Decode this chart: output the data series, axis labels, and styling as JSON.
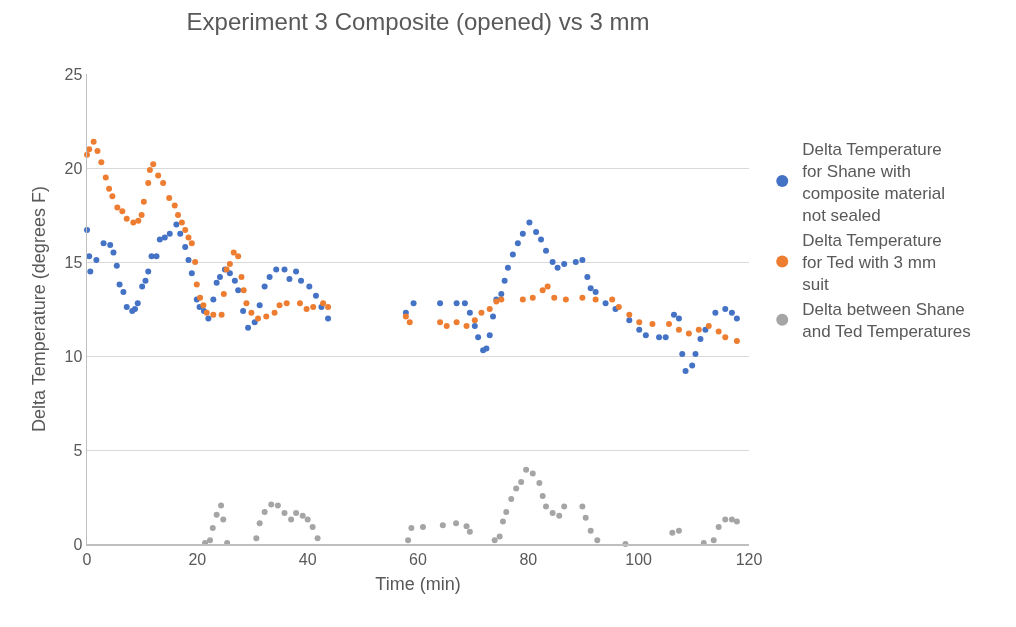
{
  "chart_data": {
    "type": "scatter",
    "title": "Experiment 3 Composite (opened) vs 3 mm",
    "xlabel": "Time (min)",
    "ylabel": "Delta Temperature (degrees F)",
    "xlim": [
      0,
      120
    ],
    "xticks": [
      0,
      20,
      40,
      60,
      80,
      100,
      120
    ],
    "ylim": [
      0,
      25
    ],
    "yticks": [
      0,
      5,
      10,
      15,
      20,
      25
    ],
    "grid": "y",
    "legend": "right",
    "marker": "circle",
    "series": [
      {
        "name": "Delta Temperature for Shane with composite material not sealed",
        "color": "#4472c4",
        "x": [
          0,
          0.4,
          0.6,
          1.7,
          3,
          4.2,
          4.8,
          5.4,
          5.9,
          6.6,
          7.2,
          8.2,
          8.7,
          9.2,
          10,
          10.6,
          11.1,
          11.7,
          12.6,
          13.2,
          14.1,
          15,
          16.2,
          16.9,
          17.8,
          18.4,
          19,
          19.9,
          20.4,
          21.2,
          22,
          22.9,
          23.5,
          24.1,
          25,
          25.9,
          26.8,
          27.4,
          28.3,
          29.2,
          30.4,
          31.3,
          32.2,
          33.1,
          34.3,
          35.8,
          36.7,
          37.9,
          38.8,
          40.3,
          41.5,
          42.5,
          43.7,
          57.8,
          59.2,
          64,
          67,
          68.5,
          69.4,
          70.3,
          70.9,
          71.8,
          72.4,
          73,
          73.6,
          74.2,
          75.1,
          75.7,
          76.3,
          77.2,
          78.1,
          79,
          80.2,
          81.4,
          82.3,
          83.2,
          84.4,
          85.3,
          86.5,
          88.6,
          89.8,
          90.7,
          91.3,
          92.2,
          94,
          95.8,
          98.3,
          100.1,
          101.3,
          103.7,
          104.9,
          106.4,
          107.3,
          107.9,
          108.5,
          109.7,
          110.3,
          111.2,
          112.1,
          113.9,
          115.7,
          116.9,
          117.8
        ],
        "values": [
          16.7,
          15.3,
          14.5,
          15.1,
          16,
          15.9,
          15.5,
          14.8,
          13.8,
          13.4,
          12.6,
          12.4,
          12.5,
          12.8,
          13.7,
          14,
          14.5,
          15.3,
          15.3,
          16.2,
          16.3,
          16.5,
          17,
          16.5,
          15.8,
          15.1,
          14.4,
          13,
          12.6,
          12.4,
          12,
          13,
          13.9,
          14.2,
          14.6,
          14.4,
          14,
          13.5,
          12.4,
          11.5,
          11.8,
          12.7,
          13.7,
          14.2,
          14.6,
          14.6,
          14.1,
          14.5,
          14,
          13.7,
          13.2,
          12.6,
          12,
          12.3,
          12.8,
          12.8,
          12.8,
          12.8,
          12.3,
          11.6,
          11,
          10.3,
          10.4,
          11.1,
          12.1,
          13,
          13.3,
          14,
          14.7,
          15.4,
          16,
          16.5,
          17.1,
          16.6,
          16.2,
          15.6,
          15,
          14.7,
          14.9,
          15,
          15.1,
          14.2,
          13.6,
          13.4,
          12.8,
          12.5,
          11.9,
          11.4,
          11.1,
          11,
          11,
          12.2,
          12,
          10.1,
          9.2,
          9.5,
          10.1,
          10.9,
          11.4,
          12.3,
          12.5,
          12.3,
          12
        ]
      },
      {
        "name": "Delta Temperature for Ted with 3 mm suit",
        "color": "#ed7d31",
        "x": [
          0,
          0.4,
          1.2,
          1.9,
          2.6,
          3.4,
          4,
          4.6,
          5.5,
          6.4,
          7.2,
          8.4,
          9.3,
          9.9,
          10.3,
          11.1,
          11.4,
          12,
          12.9,
          13.8,
          14.9,
          15.9,
          16.5,
          17.2,
          17.8,
          18.4,
          19,
          19.6,
          19.9,
          20.5,
          21.1,
          21.7,
          22.9,
          24.4,
          24.8,
          25.3,
          25.9,
          26.6,
          27.4,
          28,
          28.4,
          28.9,
          29.8,
          31,
          32.5,
          34,
          34.9,
          36.2,
          38.6,
          39.8,
          41,
          42.8,
          43.7,
          57.8,
          58.5,
          64,
          65.2,
          67,
          68.8,
          70.3,
          71.5,
          73,
          74.2,
          75.1,
          79,
          80.8,
          82.6,
          83.5,
          84.7,
          86.8,
          89.8,
          92.2,
          95.2,
          96.4,
          98.3,
          100.1,
          102.5,
          105.5,
          107.3,
          109.1,
          110.9,
          112.7,
          114.5,
          115.7,
          117.8
        ],
        "values": [
          20.7,
          21,
          21.4,
          20.9,
          20.3,
          19.5,
          18.9,
          18.5,
          17.9,
          17.7,
          17.3,
          17.1,
          17.2,
          17.5,
          18.2,
          19.2,
          19.9,
          20.2,
          19.6,
          19.2,
          18.4,
          18,
          17.5,
          17.1,
          16.7,
          16.3,
          16,
          15,
          13.8,
          13.1,
          12.7,
          12.3,
          12.2,
          12.2,
          13.3,
          14.6,
          14.9,
          15.5,
          15.3,
          14.2,
          13.5,
          12.8,
          12.3,
          12,
          12.1,
          12.3,
          12.7,
          12.8,
          12.8,
          12.5,
          12.6,
          12.8,
          12.6,
          12.1,
          11.8,
          11.8,
          11.6,
          11.8,
          11.6,
          11.9,
          12.3,
          12.5,
          12.9,
          13,
          13,
          13.1,
          13.5,
          13.7,
          13.1,
          13,
          13.1,
          13,
          13,
          12.6,
          12.2,
          11.8,
          11.7,
          11.7,
          11.4,
          11.2,
          11.4,
          11.6,
          11.3,
          11,
          10.8
        ]
      },
      {
        "name": "Delta between Shane and Ted Temperatures",
        "color": "#a5a5a5",
        "x": [
          21.4,
          22.3,
          22.8,
          23.5,
          24.3,
          24.7,
          25.4,
          30.7,
          31.3,
          32.2,
          33.4,
          34.6,
          35.8,
          37,
          37.9,
          39.1,
          40,
          40.9,
          41.8,
          58.2,
          58.8,
          60.9,
          64.5,
          66.9,
          68.8,
          69.4,
          73.9,
          74.8,
          75.4,
          76,
          76.9,
          77.8,
          78.7,
          79.6,
          80.8,
          82,
          82.6,
          83.2,
          84.4,
          85.6,
          86.5,
          89.8,
          90.4,
          91.3,
          92.5,
          97.6,
          106.1,
          107.3,
          111.8,
          113.6,
          114.5,
          115.7,
          116.9,
          117.8
        ],
        "values": [
          0.05,
          0.2,
          0.85,
          1.55,
          2.05,
          1.3,
          0.05,
          0.3,
          1.1,
          1.7,
          2.1,
          2.05,
          1.65,
          1.3,
          1.65,
          1.5,
          1.3,
          0.9,
          0.3,
          0.2,
          0.85,
          0.9,
          1,
          1.1,
          0.95,
          0.65,
          0.2,
          0.4,
          1.2,
          1.7,
          2.4,
          2.95,
          3.3,
          3.95,
          3.75,
          3.25,
          2.55,
          2,
          1.65,
          1.5,
          2,
          2,
          1.4,
          0.7,
          0.2,
          0,
          0.6,
          0.7,
          0.05,
          0.2,
          0.9,
          1.3,
          1.3,
          1.2
        ]
      }
    ]
  }
}
